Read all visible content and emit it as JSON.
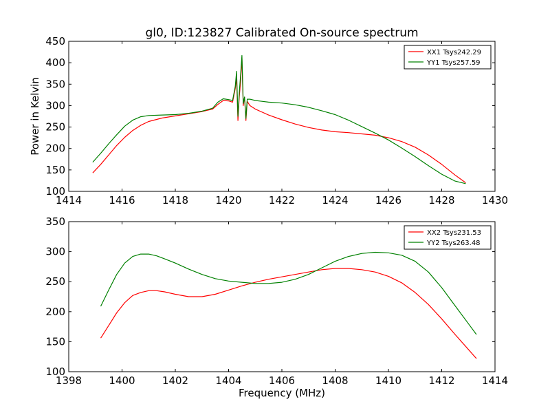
{
  "figure": {
    "title": "gl0, ID:123827 Calibrated On-source spectrum"
  },
  "colors": {
    "xx": "#ff0000",
    "yy": "#008000"
  },
  "chart_data": [
    {
      "type": "line",
      "title": "gl0, ID:123827 Calibrated On-source spectrum",
      "xlabel": "",
      "ylabel": "Power in Kelvin",
      "xlim": [
        1414,
        1430
      ],
      "ylim": [
        100,
        450
      ],
      "xticks": [
        1414,
        1416,
        1418,
        1420,
        1422,
        1424,
        1426,
        1428,
        1430
      ],
      "yticks": [
        100,
        150,
        200,
        250,
        300,
        350,
        400,
        450
      ],
      "grid": false,
      "legend_position": "top-right",
      "series": [
        {
          "name": "XX1 Tsys242.29",
          "color": "#ff0000",
          "x": [
            1414.9,
            1415.2,
            1415.5,
            1415.8,
            1416.1,
            1416.4,
            1416.7,
            1417.0,
            1417.5,
            1418.0,
            1418.5,
            1419.0,
            1419.4,
            1419.6,
            1419.8,
            1420.0,
            1420.15,
            1420.25,
            1420.3,
            1420.35,
            1420.4,
            1420.45,
            1420.5,
            1420.55,
            1420.6,
            1420.65,
            1420.7,
            1420.8,
            1421.0,
            1421.5,
            1422.0,
            1422.5,
            1423.0,
            1423.5,
            1424.0,
            1424.5,
            1425.0,
            1425.5,
            1426.0,
            1426.5,
            1427.0,
            1427.5,
            1428.0,
            1428.5,
            1428.9
          ],
          "y": [
            143,
            163,
            185,
            207,
            226,
            242,
            254,
            263,
            271,
            276,
            281,
            286,
            292,
            303,
            312,
            311,
            308,
            340,
            365,
            265,
            320,
            355,
            412,
            300,
            320,
            265,
            310,
            300,
            292,
            278,
            267,
            257,
            249,
            243,
            239,
            237,
            234,
            231,
            225,
            216,
            203,
            185,
            163,
            138,
            120
          ]
        },
        {
          "name": "YY1 Tsys257.59",
          "color": "#008000",
          "x": [
            1414.9,
            1415.2,
            1415.5,
            1415.8,
            1416.1,
            1416.4,
            1416.7,
            1417.0,
            1417.5,
            1418.0,
            1418.5,
            1419.0,
            1419.4,
            1419.6,
            1419.8,
            1420.0,
            1420.15,
            1420.25,
            1420.3,
            1420.35,
            1420.4,
            1420.45,
            1420.5,
            1420.55,
            1420.6,
            1420.65,
            1420.7,
            1420.8,
            1421.0,
            1421.5,
            1422.0,
            1422.5,
            1423.0,
            1423.5,
            1424.0,
            1424.5,
            1425.0,
            1425.5,
            1426.0,
            1426.5,
            1427.0,
            1427.5,
            1428.0,
            1428.5,
            1428.9
          ],
          "y": [
            168,
            189,
            211,
            232,
            252,
            266,
            274,
            277,
            278,
            279,
            282,
            287,
            294,
            308,
            316,
            314,
            312,
            345,
            380,
            275,
            330,
            370,
            417,
            305,
            320,
            270,
            315,
            315,
            312,
            308,
            306,
            302,
            296,
            288,
            279,
            266,
            251,
            236,
            220,
            201,
            181,
            160,
            140,
            124,
            118
          ]
        }
      ]
    },
    {
      "type": "line",
      "title": "",
      "xlabel": "Frequency (MHz)",
      "ylabel": "",
      "xlim": [
        1398,
        1414
      ],
      "ylim": [
        100,
        350
      ],
      "xticks": [
        1398,
        1400,
        1402,
        1404,
        1406,
        1408,
        1410,
        1412,
        1414
      ],
      "yticks": [
        100,
        150,
        200,
        250,
        300,
        350
      ],
      "grid": false,
      "legend_position": "top-right",
      "series": [
        {
          "name": "XX2 Tsys231.53",
          "color": "#ff0000",
          "x": [
            1399.2,
            1399.5,
            1399.8,
            1400.1,
            1400.4,
            1400.7,
            1401.0,
            1401.3,
            1401.6,
            1402.0,
            1402.5,
            1403.0,
            1403.5,
            1404.0,
            1404.5,
            1405.0,
            1405.5,
            1406.0,
            1406.5,
            1407.0,
            1407.5,
            1408.0,
            1408.5,
            1409.0,
            1409.5,
            1410.0,
            1410.5,
            1411.0,
            1411.5,
            1412.0,
            1412.5,
            1413.0,
            1413.3
          ],
          "y": [
            156,
            177,
            198,
            215,
            227,
            232,
            235,
            235,
            233,
            229,
            225,
            225,
            229,
            236,
            243,
            249,
            254,
            258,
            262,
            266,
            270,
            272,
            272,
            270,
            266,
            259,
            248,
            232,
            212,
            188,
            162,
            137,
            122
          ]
        },
        {
          "name": "YY2 Tsys263.48",
          "color": "#008000",
          "x": [
            1399.2,
            1399.5,
            1399.8,
            1400.1,
            1400.4,
            1400.7,
            1401.0,
            1401.3,
            1401.6,
            1402.0,
            1402.5,
            1403.0,
            1403.5,
            1404.0,
            1404.5,
            1405.0,
            1405.5,
            1406.0,
            1406.5,
            1407.0,
            1407.5,
            1408.0,
            1408.5,
            1409.0,
            1409.5,
            1410.0,
            1410.5,
            1411.0,
            1411.5,
            1412.0,
            1412.5,
            1413.0,
            1413.3
          ],
          "y": [
            209,
            236,
            262,
            281,
            292,
            296,
            296,
            293,
            288,
            281,
            271,
            262,
            255,
            251,
            249,
            247,
            247,
            249,
            254,
            262,
            273,
            284,
            292,
            297,
            299,
            298,
            294,
            284,
            266,
            240,
            210,
            180,
            162
          ]
        }
      ]
    }
  ]
}
